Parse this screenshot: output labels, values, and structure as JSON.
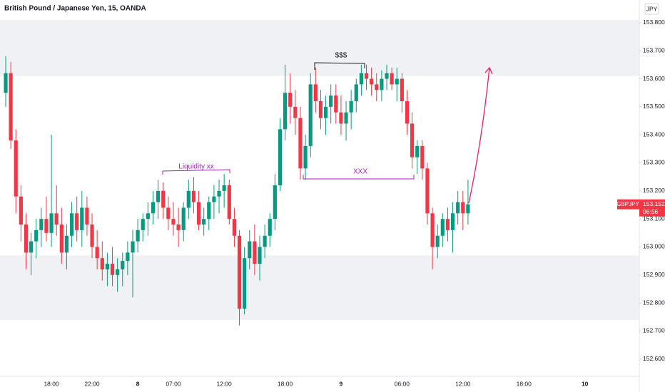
{
  "chart_data": {
    "type": "candlestick",
    "title": "British Pound / Japanese Yen, 15, OANDA",
    "currency": "JPY",
    "up_color": "#089981",
    "down_color": "#f23645",
    "ylim": [
      152.541,
      153.881
    ],
    "yticks": [
      {
        "value": 152.6,
        "label": "152.600"
      },
      {
        "value": 152.7,
        "label": "152.700"
      },
      {
        "value": 152.8,
        "label": "152.800"
      },
      {
        "value": 152.9,
        "label": "152.900"
      },
      {
        "value": 153.0,
        "label": "153.000"
      },
      {
        "value": 153.1,
        "label": "153.100"
      },
      {
        "value": 153.2,
        "label": "153.200"
      },
      {
        "value": 153.3,
        "label": "153.300"
      },
      {
        "value": 153.4,
        "label": "153.400"
      },
      {
        "value": 153.5,
        "label": "153.500"
      },
      {
        "value": 153.6,
        "label": "153.600"
      },
      {
        "value": 153.7,
        "label": "153.700"
      },
      {
        "value": 153.8,
        "label": "153.800"
      }
    ],
    "grid": false,
    "zones": [
      {
        "from": 153.61,
        "to": 153.81
      },
      {
        "from": 152.74,
        "to": 152.97
      }
    ],
    "categories": [
      null,
      null,
      null,
      null,
      null,
      null,
      null,
      null,
      null,
      "18:00",
      null,
      null,
      null,
      null,
      null,
      null,
      null,
      "22:00",
      null,
      null,
      null,
      null,
      null,
      null,
      null,
      null,
      "8",
      null,
      null,
      null,
      null,
      null,
      null,
      "07:00",
      null,
      null,
      null,
      null,
      null,
      null,
      null,
      null,
      null,
      "12:00",
      null,
      null,
      null,
      null,
      null,
      null,
      null,
      null,
      null,
      null,
      null,
      "18:00",
      null,
      null,
      null,
      null,
      null,
      null,
      null,
      null,
      null,
      null,
      "9",
      null,
      null,
      null,
      null,
      null,
      null,
      null,
      null,
      null,
      null,
      null,
      "06:00",
      null,
      null,
      null,
      null,
      null,
      null,
      null,
      null,
      null,
      null,
      null,
      "12:00",
      null,
      null,
      null,
      null,
      null,
      null,
      null,
      null,
      null,
      null,
      null,
      "18:00",
      null,
      null,
      null,
      null,
      null,
      null,
      null,
      null,
      null,
      null,
      null,
      "10",
      null,
      null,
      null,
      null,
      null,
      null,
      null,
      null,
      null,
      null
    ],
    "open": [
      153.55,
      153.62,
      153.38,
      153.18,
      153.08,
      152.98,
      153.02,
      153.06,
      153.1,
      153.05,
      153.12,
      153.08,
      152.98,
      153.04,
      153.12,
      153.06,
      153.14,
      153.08,
      153.0,
      152.96,
      152.92,
      152.94,
      152.9,
      152.92,
      152.95,
      152.98,
      153.02,
      153.06,
      153.1,
      153.12,
      153.16,
      153.2,
      153.14,
      153.1,
      153.08,
      153.06,
      153.14,
      153.2,
      153.16,
      153.08,
      153.1,
      153.16,
      153.18,
      153.2,
      153.22,
      153.1,
      153.04,
      152.78,
      152.96,
      153.02,
      152.94,
      153.0,
      153.04,
      153.1,
      153.22,
      153.42,
      153.55,
      153.5,
      153.46,
      153.28,
      153.36,
      153.58,
      153.52,
      153.46,
      153.5,
      153.54,
      153.48,
      153.44,
      153.48,
      153.52,
      153.58,
      153.62,
      153.6,
      153.58,
      153.56,
      153.6,
      153.62,
      153.58,
      153.6,
      153.52,
      153.44,
      153.32,
      153.36,
      153.28,
      153.12,
      153.0,
      153.04,
      153.1,
      153.06,
      153.12,
      153.16,
      153.12,
      null,
      null,
      null,
      null,
      null,
      null,
      null,
      null,
      null,
      null,
      null,
      null,
      null,
      null,
      null,
      null,
      null,
      null,
      null,
      null,
      null,
      null,
      null,
      null,
      null,
      null,
      null,
      null,
      null,
      null,
      null,
      null,
      null
    ],
    "high": [
      153.68,
      153.66,
      153.42,
      153.22,
      153.12,
      153.05,
      153.1,
      153.14,
      153.18,
      153.4,
      153.22,
      153.14,
      153.08,
      153.16,
      153.18,
      153.2,
      153.18,
      153.12,
      153.06,
      153.02,
      152.98,
      153.0,
      152.96,
      152.98,
      153.02,
      153.06,
      153.1,
      153.12,
      153.16,
      153.2,
      153.24,
      153.23,
      153.18,
      153.16,
      153.14,
      153.16,
      153.24,
      153.25,
      153.2,
      153.14,
      153.18,
      153.22,
      153.24,
      153.26,
      153.24,
      153.14,
      153.06,
      153.0,
      153.06,
      153.08,
      153.04,
      153.08,
      153.12,
      153.26,
      153.46,
      153.65,
      153.62,
      153.56,
      153.5,
      153.4,
      153.62,
      153.64,
      153.56,
      153.54,
      153.58,
      153.58,
      153.54,
      153.52,
      153.56,
      153.6,
      153.65,
      153.65,
      153.64,
      153.62,
      153.63,
      153.65,
      153.64,
      153.64,
      153.62,
      153.56,
      153.48,
      153.38,
      153.38,
      153.3,
      153.14,
      153.08,
      153.12,
      153.14,
      153.16,
      153.2,
      153.2,
      153.24,
      null,
      null,
      null,
      null,
      null,
      null,
      null,
      null,
      null,
      null,
      null,
      null,
      null,
      null,
      null,
      null,
      null,
      null,
      null,
      null,
      null,
      null,
      null,
      null,
      null,
      null,
      null,
      null,
      null,
      null,
      null,
      null,
      null
    ],
    "low": [
      153.5,
      153.35,
      153.12,
      153.02,
      152.92,
      152.9,
      152.96,
      153.0,
      153.02,
      153.0,
      153.04,
      152.94,
      152.92,
      153.0,
      153.02,
      153.0,
      153.04,
      152.96,
      152.92,
      152.88,
      152.86,
      152.86,
      152.84,
      152.86,
      152.9,
      152.82,
      152.98,
      153.02,
      153.04,
      153.08,
      153.1,
      153.1,
      153.06,
      153.04,
      153.0,
      153.02,
      153.1,
      153.12,
      153.06,
      153.04,
      153.06,
      153.1,
      153.12,
      153.14,
      153.08,
      153.0,
      152.72,
      152.76,
      152.92,
      152.9,
      152.88,
      152.96,
      153.0,
      153.06,
      153.2,
      153.38,
      153.44,
      153.4,
      153.24,
      153.24,
      153.32,
      153.48,
      153.42,
      153.4,
      153.44,
      153.44,
      153.4,
      153.38,
      153.42,
      153.48,
      153.54,
      153.56,
      153.54,
      153.52,
      153.52,
      153.56,
      153.56,
      153.52,
      153.48,
      153.4,
      153.28,
      153.26,
      153.24,
      153.08,
      152.92,
      152.96,
      153.0,
      153.02,
      152.98,
      153.08,
      153.06,
      153.08,
      null,
      null,
      null,
      null,
      null,
      null,
      null,
      null,
      null,
      null,
      null,
      null,
      null,
      null,
      null,
      null,
      null,
      null,
      null,
      null,
      null,
      null,
      null,
      null,
      null,
      null,
      null,
      null,
      null,
      null,
      null,
      null,
      null
    ],
    "close": [
      153.62,
      153.38,
      153.18,
      153.08,
      152.98,
      153.02,
      153.06,
      153.1,
      153.05,
      153.12,
      153.08,
      152.98,
      153.04,
      153.12,
      153.06,
      153.14,
      153.08,
      153.0,
      152.96,
      152.92,
      152.94,
      152.9,
      152.92,
      152.95,
      152.98,
      153.02,
      153.06,
      153.1,
      153.12,
      153.16,
      153.2,
      153.14,
      153.1,
      153.08,
      153.06,
      153.14,
      153.2,
      153.16,
      153.08,
      153.1,
      153.16,
      153.18,
      153.2,
      153.22,
      153.1,
      153.04,
      152.78,
      152.96,
      153.02,
      152.94,
      153.0,
      153.04,
      153.1,
      153.22,
      153.42,
      153.55,
      153.5,
      153.46,
      153.28,
      153.36,
      153.58,
      153.52,
      153.46,
      153.5,
      153.54,
      153.48,
      153.44,
      153.48,
      153.52,
      153.58,
      153.62,
      153.6,
      153.58,
      153.56,
      153.6,
      153.62,
      153.58,
      153.6,
      153.52,
      153.44,
      153.32,
      153.36,
      153.28,
      153.12,
      153.0,
      153.04,
      153.1,
      153.06,
      153.12,
      153.16,
      153.12,
      153.152,
      null,
      null,
      null,
      null,
      null,
      null,
      null,
      null,
      null,
      null,
      null,
      null,
      null,
      null,
      null,
      null,
      null,
      null,
      null,
      null,
      null,
      null,
      null,
      null,
      null,
      null,
      null,
      null,
      null,
      null,
      null,
      null,
      null
    ],
    "last_price": {
      "symbol": "GBPJPY",
      "value": 153.152,
      "countdown": "06:56"
    },
    "annotations": [
      "Liquidity  xx",
      "$$$",
      "XXX"
    ]
  }
}
